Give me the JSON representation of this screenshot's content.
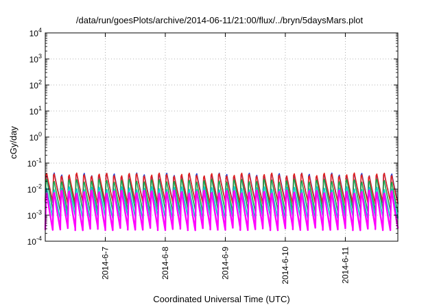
{
  "chart_data": {
    "type": "line",
    "title": "/data/run/goesPlots/archive/2014-06-11/21:00/flux/../bryn/5daysMars.plot",
    "xlabel": "Coordinated Universal Time (UTC)",
    "ylabel": "cGy/day",
    "yscale": "log",
    "ylim": [
      0.0001,
      10000
    ],
    "yticks": [
      {
        "base": "10",
        "exp": "-4"
      },
      {
        "base": "10",
        "exp": "-3"
      },
      {
        "base": "10",
        "exp": "-2"
      },
      {
        "base": "10",
        "exp": "-1"
      },
      {
        "base": "10",
        "exp": "0"
      },
      {
        "base": "10",
        "exp": "1"
      },
      {
        "base": "10",
        "exp": "2"
      },
      {
        "base": "10",
        "exp": "3"
      },
      {
        "base": "10",
        "exp": "4"
      }
    ],
    "xlim": [
      "2014-06-06 00:00",
      "2014-06-11 21:00"
    ],
    "xticks": [
      "2014-6-7",
      "2014-6-8",
      "2014-6-9",
      "2014-6-10",
      "2014-6-11"
    ],
    "grid": true,
    "cycles_per_day": 8,
    "series": [
      {
        "color": "#1f3fd8",
        "peak": 0.05,
        "trough": 0.003
      },
      {
        "color": "#e0201f",
        "peak": 0.05,
        "trough": 0.003
      },
      {
        "color": "#16a34a",
        "peak": 0.03,
        "trough": 0.0015
      },
      {
        "color": "#00c8c8",
        "peak": 0.015,
        "trough": 0.0008
      },
      {
        "color": "#ff00ff",
        "peak": 0.012,
        "trough": 0.0003
      }
    ]
  }
}
